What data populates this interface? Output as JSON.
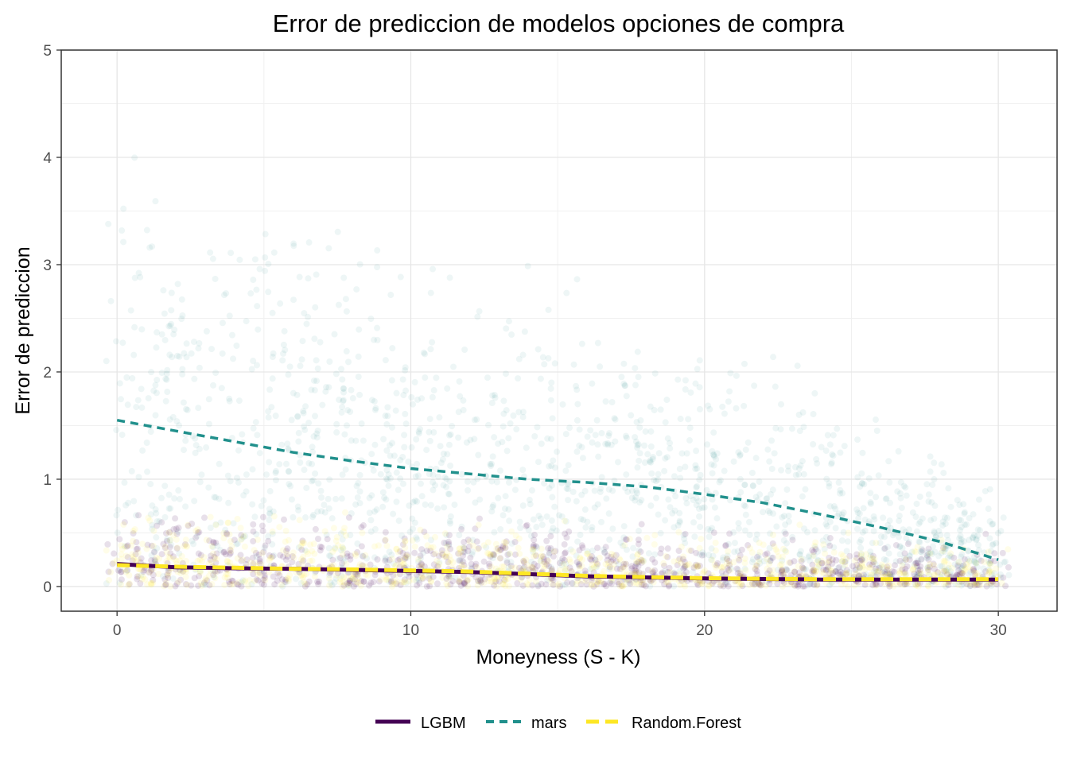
{
  "chart_data": {
    "type": "scatter",
    "title": "Error de prediccion de modelos opciones de compra",
    "xlabel": "Moneyness (S - K)",
    "ylabel": "Error de prediccion",
    "xlim": [
      -1.9,
      32.0
    ],
    "ylim": [
      -0.23,
      5.0
    ],
    "x_ticks": [
      0,
      10,
      20,
      30
    ],
    "y_ticks": [
      0,
      1,
      2,
      3,
      4,
      5
    ],
    "x_tick_labels": [
      "0",
      "10",
      "20",
      "30"
    ],
    "y_tick_labels": [
      "0",
      "1",
      "2",
      "3",
      "4",
      "5"
    ],
    "grid": true,
    "legend_position": "bottom",
    "series": [
      {
        "name": "LGBM",
        "color": "#440154",
        "line_style": "solid",
        "trend_x": [
          0,
          2,
          4,
          6,
          8,
          10,
          12,
          14,
          16,
          18,
          20,
          22,
          24,
          26,
          28,
          30
        ],
        "trend_y": [
          0.21,
          0.18,
          0.17,
          0.165,
          0.155,
          0.145,
          0.135,
          0.115,
          0.095,
          0.085,
          0.075,
          0.07,
          0.065,
          0.065,
          0.065,
          0.065
        ],
        "points_note": "dense cloud of residuals, mostly 0 to 0.5"
      },
      {
        "name": "mars",
        "color": "#21908C",
        "line_style": "dashed",
        "trend_x": [
          0,
          2,
          4,
          6,
          8,
          10,
          12,
          14,
          16,
          18,
          20,
          22,
          24,
          26,
          28,
          30
        ],
        "trend_y": [
          1.55,
          1.45,
          1.35,
          1.25,
          1.17,
          1.1,
          1.05,
          1.0,
          0.97,
          0.93,
          0.86,
          0.78,
          0.67,
          0.55,
          0.42,
          0.25
        ],
        "points_note": "wide cloud of residuals, 0 to about 4.8"
      },
      {
        "name": "Random.Forest",
        "color": "#FDE725",
        "line_style": "dashed",
        "trend_x": [
          0,
          2,
          4,
          6,
          8,
          10,
          12,
          14,
          16,
          18,
          20,
          22,
          24,
          26,
          28,
          30
        ],
        "trend_y": [
          0.2,
          0.185,
          0.175,
          0.165,
          0.16,
          0.15,
          0.14,
          0.12,
          0.1,
          0.088,
          0.078,
          0.072,
          0.068,
          0.068,
          0.068,
          0.068
        ],
        "points_note": "dense cloud of residuals, mostly 0 to 0.5"
      }
    ]
  }
}
